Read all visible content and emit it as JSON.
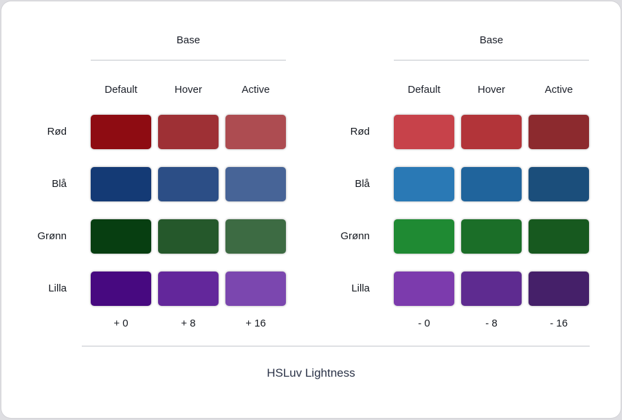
{
  "page": {
    "caption": "HSLuv Lightness",
    "background_color": "#DEDEE2",
    "card_color": "#FFFFFF",
    "divider_color": "#C2C5CB",
    "text_color": "#14181F"
  },
  "panels": [
    {
      "id": "base-plus",
      "group_title": "Base",
      "columns": [
        "Default",
        "Hover",
        "Active"
      ],
      "rows": [
        {
          "label": "Rød",
          "swatches": [
            "#8E0C12",
            "#9E3035",
            "#AD4C51"
          ]
        },
        {
          "label": "Blå",
          "swatches": [
            "#143A75",
            "#2C4E86",
            "#476497"
          ]
        },
        {
          "label": "Grønn",
          "swatches": [
            "#073E11",
            "#25582B",
            "#3D6B43"
          ]
        },
        {
          "label": "Lilla",
          "swatches": [
            "#470980",
            "#63279B",
            "#7B47AF"
          ]
        }
      ],
      "step_labels": [
        "+ 0",
        "+ 8",
        "+ 16"
      ]
    },
    {
      "id": "base-minus",
      "group_title": "Base",
      "columns": [
        "Default",
        "Hover",
        "Active"
      ],
      "rows": [
        {
          "label": "Rød",
          "swatches": [
            "#C7424A",
            "#B23439",
            "#8C2A2E"
          ]
        },
        {
          "label": "Blå",
          "swatches": [
            "#2A79B5",
            "#20649C",
            "#1B4E7B"
          ]
        },
        {
          "label": "Grønn",
          "swatches": [
            "#1F8A33",
            "#1B6E28",
            "#17591F"
          ]
        },
        {
          "label": "Lilla",
          "swatches": [
            "#7C3BAD",
            "#5E2B90",
            "#452069"
          ]
        }
      ],
      "step_labels": [
        "- 0",
        "- 8",
        "- 16"
      ]
    }
  ]
}
